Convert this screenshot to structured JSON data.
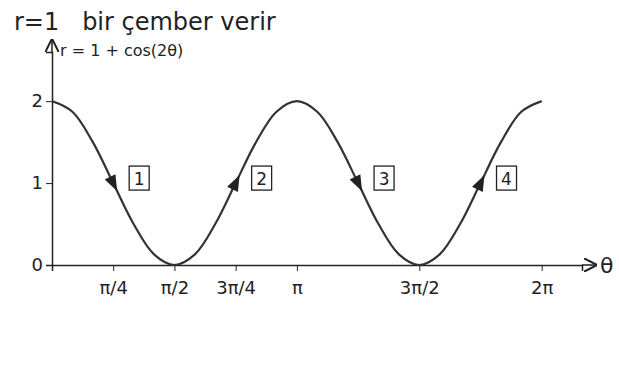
{
  "chart_data": {
    "type": "line",
    "title": "r=1   bir çember verir",
    "y_label": "r = 1 + cos(2θ)",
    "x_label": "θ",
    "x": [
      0,
      0.262,
      0.524,
      0.785,
      1.047,
      1.309,
      1.571,
      1.833,
      2.094,
      2.356,
      2.618,
      2.88,
      3.142,
      3.403,
      3.665,
      3.927,
      4.189,
      4.451,
      4.712,
      4.974,
      5.236,
      5.498,
      5.76,
      6.021,
      6.283
    ],
    "values": [
      2,
      1.87,
      1.5,
      1,
      0.5,
      0.13,
      0,
      0.13,
      0.5,
      1,
      1.5,
      1.87,
      2,
      1.87,
      1.5,
      1,
      0.5,
      0.13,
      0,
      0.13,
      0.5,
      1,
      1.5,
      1.87,
      2
    ],
    "color": "#333333",
    "xlim": [
      0,
      6.8
    ],
    "ylim": [
      0,
      2.6
    ],
    "xticks": [
      {
        "value": 0.785,
        "label": "π/4"
      },
      {
        "value": 1.571,
        "label": "π/2"
      },
      {
        "value": 2.356,
        "label": "3π/4"
      },
      {
        "value": 3.142,
        "label": "π"
      },
      {
        "value": 4.712,
        "label": "3π/2"
      },
      {
        "value": 6.283,
        "label": "2π"
      }
    ],
    "yticks": [
      0,
      1,
      2
    ],
    "grid": false,
    "annotations": [
      {
        "text": "1",
        "x": 0.785,
        "y": 1
      },
      {
        "text": "2",
        "x": 2.356,
        "y": 1
      },
      {
        "text": "3",
        "x": 3.927,
        "y": 1
      },
      {
        "text": "4",
        "x": 5.498,
        "y": 1
      }
    ]
  }
}
